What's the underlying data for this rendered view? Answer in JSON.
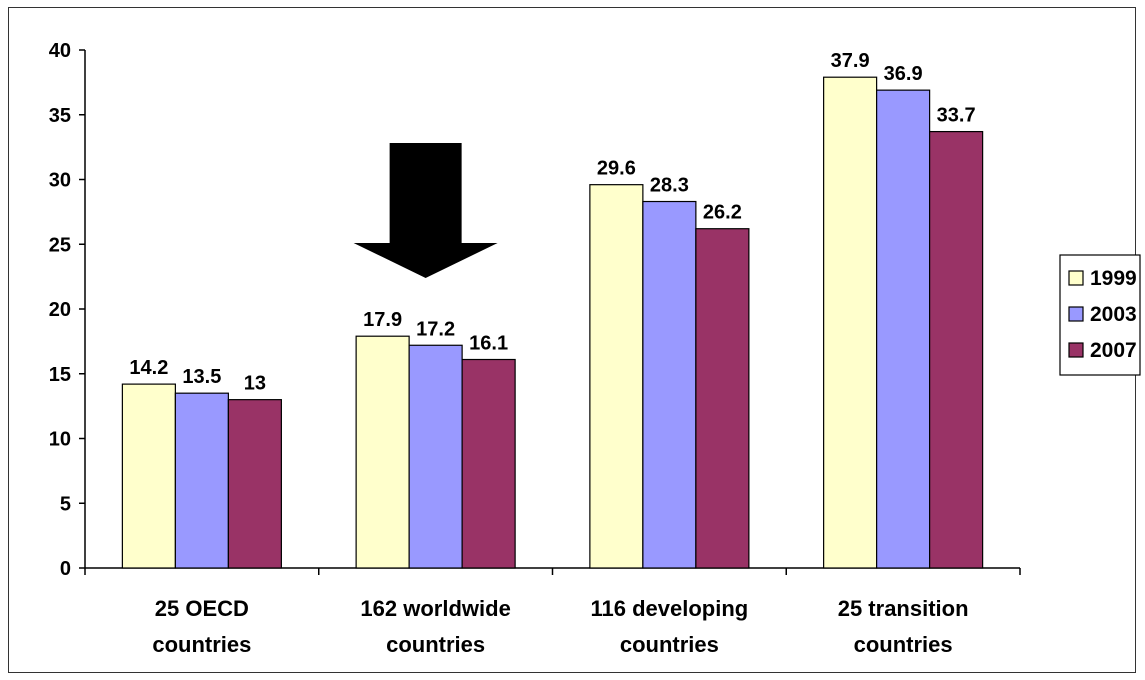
{
  "chart_data": {
    "type": "bar",
    "title": "",
    "xlabel": "",
    "ylabel": "",
    "ylim": [
      0,
      40
    ],
    "yticks": [
      0,
      5,
      10,
      15,
      20,
      25,
      30,
      35,
      40
    ],
    "grid": false,
    "legend_position": "right",
    "categories": [
      [
        "25 OECD",
        "countries"
      ],
      [
        "162 worldwide",
        "countries"
      ],
      [
        "116 developing",
        "countries"
      ],
      [
        "25 transition",
        "countries"
      ]
    ],
    "series": [
      {
        "name": "1999",
        "color": "#FFFFCC",
        "values": [
          14.2,
          17.9,
          29.6,
          37.9
        ]
      },
      {
        "name": "2003",
        "color": "#9999FF",
        "values": [
          13.5,
          17.2,
          28.3,
          36.9
        ]
      },
      {
        "name": "2007",
        "color": "#993366",
        "values": [
          13,
          16.1,
          26.2,
          33.7
        ]
      }
    ],
    "annotation": {
      "type": "arrow-down",
      "category_index": 1,
      "color": "#000000"
    }
  }
}
